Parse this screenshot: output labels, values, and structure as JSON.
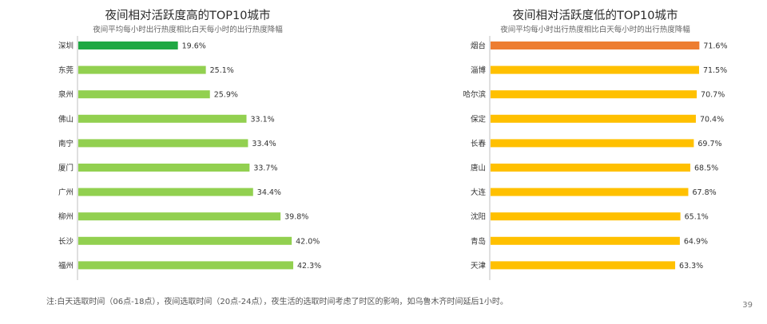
{
  "page_number": "39",
  "note": "注:白天选取时间（06点-18点），夜间选取时间（20点-24点），夜生活的选取时间考虑了时区的影响，如乌鲁木齐时间延后1小时。",
  "chart_data": [
    {
      "type": "bar",
      "orientation": "horizontal",
      "title": "夜间相对活跃度高的TOP10城市",
      "subtitle": "夜间平均每小时出行热度相比白天每小时的出行热度降幅",
      "categories": [
        "深圳",
        "东莞",
        "泉州",
        "佛山",
        "南宁",
        "厦门",
        "广州",
        "柳州",
        "长沙",
        "福州"
      ],
      "values": [
        19.6,
        25.1,
        25.9,
        33.1,
        33.4,
        33.7,
        34.4,
        39.8,
        42.0,
        42.3
      ],
      "value_labels": [
        "19.6%",
        "25.1%",
        "25.9%",
        "33.1%",
        "33.4%",
        "33.7%",
        "34.4%",
        "39.8%",
        "42.0%",
        "42.3%"
      ],
      "highlight_color": "#1fa843",
      "bar_color": "#92d050",
      "grid": false,
      "legend": "none"
    },
    {
      "type": "bar",
      "orientation": "horizontal",
      "title": "夜间相对活跃度低的TOP10城市",
      "subtitle": "夜间平均每小时出行热度相比白天每小时的出行热度降幅",
      "categories": [
        "烟台",
        "淄博",
        "哈尔滨",
        "保定",
        "长春",
        "唐山",
        "大连",
        "沈阳",
        "青岛",
        "天津"
      ],
      "values": [
        71.6,
        71.5,
        70.7,
        70.4,
        69.7,
        68.5,
        67.8,
        65.1,
        64.9,
        63.3
      ],
      "value_labels": [
        "71.6%",
        "71.5%",
        "70.7%",
        "70.4%",
        "69.7%",
        "68.5%",
        "67.8%",
        "65.1%",
        "64.9%",
        "63.3%"
      ],
      "highlight_color": "#ed7d31",
      "bar_color": "#ffc000",
      "grid": false,
      "legend": "none"
    }
  ]
}
